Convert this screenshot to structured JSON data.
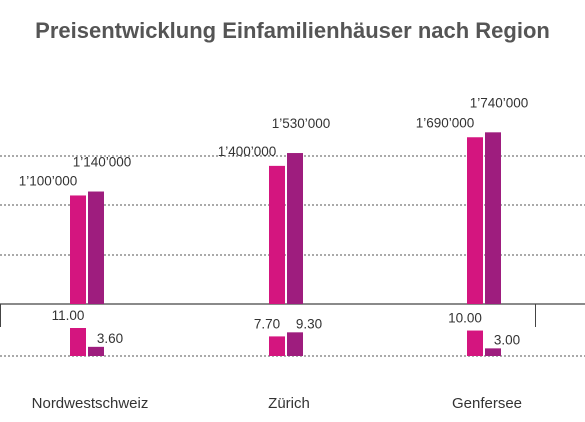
{
  "chart_data": {
    "type": "bar",
    "title": "Preisentwicklung Einfamilienhäuser nach Region",
    "categories": [
      "Nordwestschweiz",
      "Zürich",
      "Genfersee"
    ],
    "top_panel": {
      "series_values": [
        [
          1100000,
          1140000
        ],
        [
          1400000,
          1530000
        ],
        [
          1690000,
          1740000
        ]
      ],
      "labels": [
        [
          "1’100’000",
          "1’140’000"
        ],
        [
          "1’400’000",
          "1’530’000"
        ],
        [
          "1’690’000",
          "1’740’000"
        ]
      ]
    },
    "bottom_panel": {
      "series_values": [
        [
          11.0,
          3.6
        ],
        [
          7.7,
          9.3
        ],
        [
          10.0,
          3.0
        ]
      ],
      "labels": [
        [
          "11.00",
          "3.60"
        ],
        [
          "7.70",
          "9.30"
        ],
        [
          "10.00",
          "3.00"
        ]
      ]
    },
    "series_colors": [
      "#d4157f",
      "#9e1d7e"
    ],
    "grid": true
  }
}
